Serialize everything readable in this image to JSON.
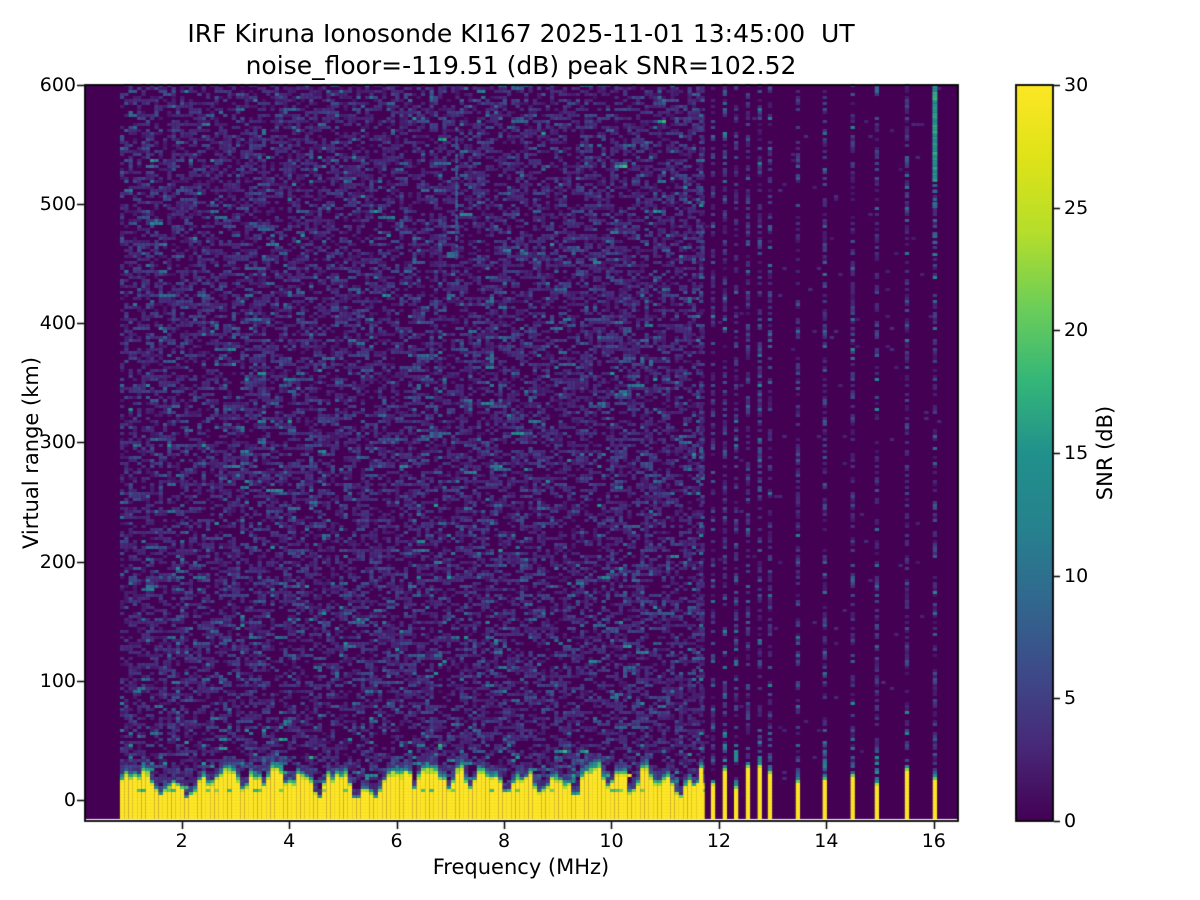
{
  "chart_data": {
    "type": "heatmap",
    "title": "IRF Kiruna Ionosonde KI167 2025-11-01 13:45:00  UT",
    "subtitle": "noise_floor=-119.51 (dB) peak SNR=102.52",
    "station": "IRF Kiruna Ionosonde KI167",
    "timestamp_ut": "2025-11-01 13:45:00",
    "noise_floor_db": -119.51,
    "peak_snr_db": 102.52,
    "xlabel": "Frequency (MHz)",
    "ylabel": "Virtual range (km)",
    "colorbar_label": "SNR (dB)",
    "colormap": "viridis",
    "grid": false,
    "legend": false,
    "x_ticks": [
      2,
      4,
      6,
      8,
      10,
      12,
      14,
      16
    ],
    "y_ticks": [
      0,
      100,
      200,
      300,
      400,
      500,
      600
    ],
    "colorbar_ticks": [
      0,
      5,
      10,
      15,
      20,
      25,
      30
    ],
    "xlim": [
      0.2,
      16.45
    ],
    "ylim": [
      -17.7,
      600
    ],
    "clim": [
      0,
      30
    ],
    "sweep": {
      "continuous_start_mhz": 0.85,
      "continuous_end_mhz": 11.66,
      "stepped_frequencies_mhz": [
        11.67,
        11.89,
        12.11,
        12.32,
        12.54,
        12.76,
        12.95,
        13.47,
        13.97,
        14.49,
        14.94,
        15.5,
        16.02
      ]
    },
    "clutter_band": {
      "saturated_snr_db": 30,
      "yellow_top_km_typical": 27,
      "band_top_km_max": 48,
      "extends_below_zero_to_km": -16,
      "notch_frequencies_mhz": [
        1.55,
        2.1,
        2.55,
        3.1,
        3.5,
        3.95,
        4.5,
        5.2,
        5.55,
        6.3,
        6.95,
        7.35,
        8.0,
        8.65,
        9.3,
        9.9,
        10.35,
        10.8,
        11.2
      ]
    },
    "noise_speckle_db_range": [
      0,
      16
    ],
    "features": [
      {
        "name": "rfi-line",
        "freq_mhz": 16.02,
        "range_km": [
          520,
          600
        ],
        "snr_db": 14
      },
      {
        "name": "rfi-line-faint-tail",
        "freq_mhz": 16.02,
        "range_km": [
          430,
          520
        ],
        "snr_db": 9
      },
      {
        "name": "faint-echo-trace",
        "freq_mhz": 7.12,
        "range_km": [
          455,
          565
        ],
        "snr_db": 8
      }
    ]
  }
}
